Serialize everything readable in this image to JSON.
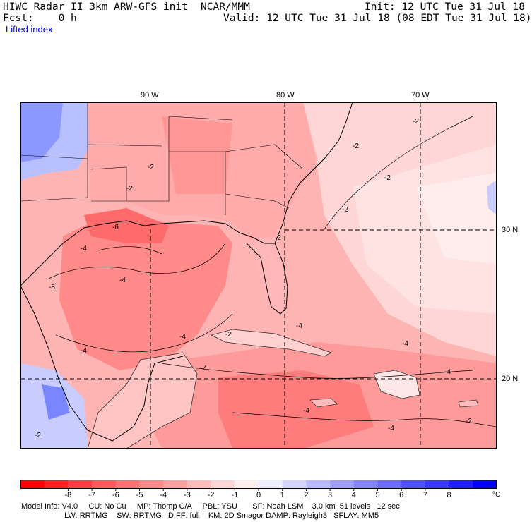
{
  "header": {
    "model": "HIWC Radar II 3km ARW-GFS init",
    "org": "NCAR/MMM",
    "init": "Init: 12 UTC Tue 31 Jul 18",
    "fcst": "Fcst:    0 h",
    "valid": "Valid: 12 UTC Tue 31 Jul 18 (08 EDT Tue 31 Jul 18)",
    "field": "Lifted index"
  },
  "map": {
    "lon_labels": [
      "90 W",
      "80 W",
      "70 W"
    ],
    "lat_labels": [
      "30 N",
      "20 N"
    ],
    "contour_labels": [
      "-2",
      "-4",
      "-6",
      "-8"
    ]
  },
  "colorbar": {
    "ticks": [
      "-8",
      "-7",
      "-6",
      "-5",
      "-4",
      "-3",
      "-2",
      "-1",
      "0",
      "1",
      "2",
      "3",
      "4",
      "5",
      "6",
      "7",
      "8"
    ],
    "unit": "°C",
    "colors": [
      "#ff0000",
      "#ff2020",
      "#ff4040",
      "#ff5a5a",
      "#ff7272",
      "#ff8a8a",
      "#ffa2a2",
      "#ffbcbc",
      "#ffd6d6",
      "#fff0f0",
      "#eeeeff",
      "#d4d4ff",
      "#babaff",
      "#a0a0ff",
      "#8686ff",
      "#6c6cff",
      "#5252ff",
      "#3838ff",
      "#1e1eff",
      "#0000ff"
    ]
  },
  "info": {
    "line1": "Model Info: V4.0     CU: No Cu     MP: Thomp C/A     PBL: YSU       SF: Noah LSM    3.0 km  51 levels   12 sec",
    "line2": "                    LW: RRTMG    SW: RRTMG   DIFF: full    KM: 2D Smagor DAMP: Rayleigh3   SFLAY: MM5"
  },
  "palette": {
    "land_light": "#ffd3d3",
    "ocean_warm": "#ff8c8c",
    "gulf_strong": "#ff7070",
    "blue_tint": "#9aa6ff"
  }
}
